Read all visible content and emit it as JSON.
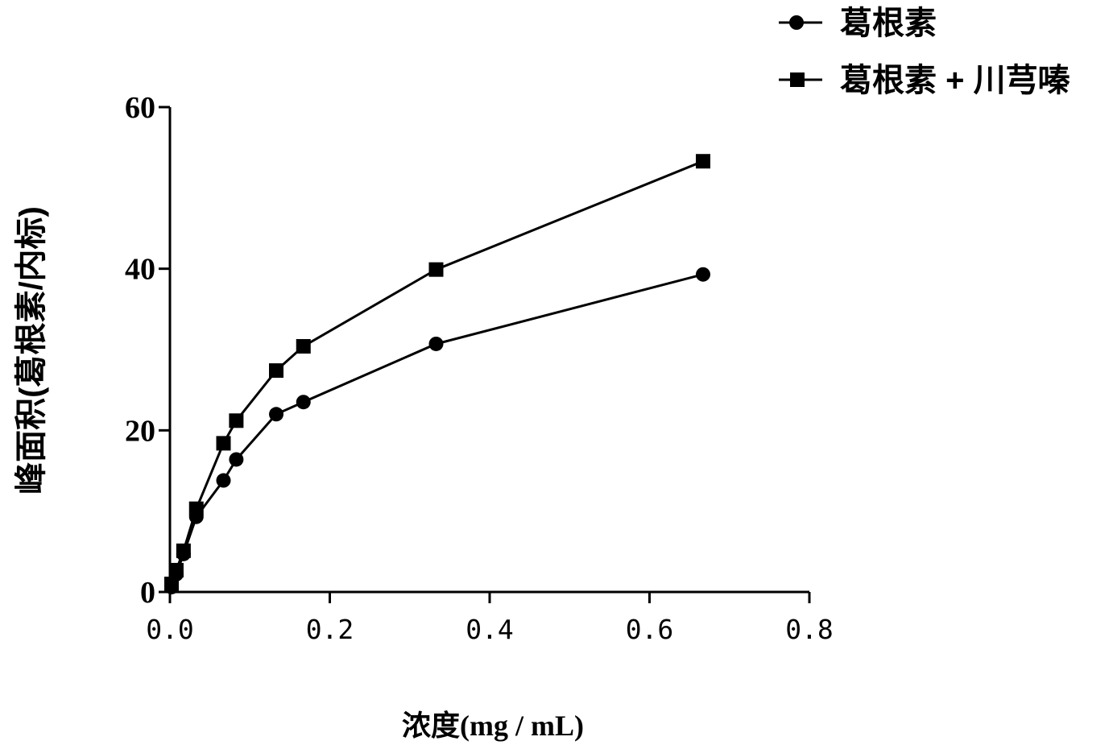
{
  "chart_data": {
    "type": "line",
    "title": "",
    "xlabel": "浓度(mg / mL)",
    "ylabel": "峰面积(葛根素/内标)",
    "xlim": [
      0,
      0.8
    ],
    "ylim": [
      0,
      60
    ],
    "xticks": [
      0,
      0.2,
      0.4,
      0.6,
      0.8
    ],
    "xtick_labels": [
      "0.0",
      "0.2",
      "0.4",
      "0.6",
      "0.8"
    ],
    "yticks": [
      0,
      20,
      40,
      60
    ],
    "ytick_labels": [
      "0",
      "20",
      "40",
      "60"
    ],
    "grid": false,
    "legend_position": "top-right",
    "x": [
      0.002,
      0.008,
      0.017,
      0.033,
      0.067,
      0.083,
      0.133,
      0.167,
      0.333,
      0.667
    ],
    "series": [
      {
        "name": "葛根素",
        "marker": "circle",
        "color": "#000000",
        "values": [
          0.6,
          2.2,
          4.7,
          9.3,
          13.8,
          16.4,
          22.0,
          23.5,
          30.7,
          39.3
        ]
      },
      {
        "name": "葛根素 + 川芎嗪",
        "marker": "square",
        "color": "#000000",
        "values": [
          1.0,
          2.7,
          5.1,
          10.3,
          18.4,
          21.2,
          27.4,
          30.4,
          39.9,
          53.3
        ]
      }
    ]
  }
}
